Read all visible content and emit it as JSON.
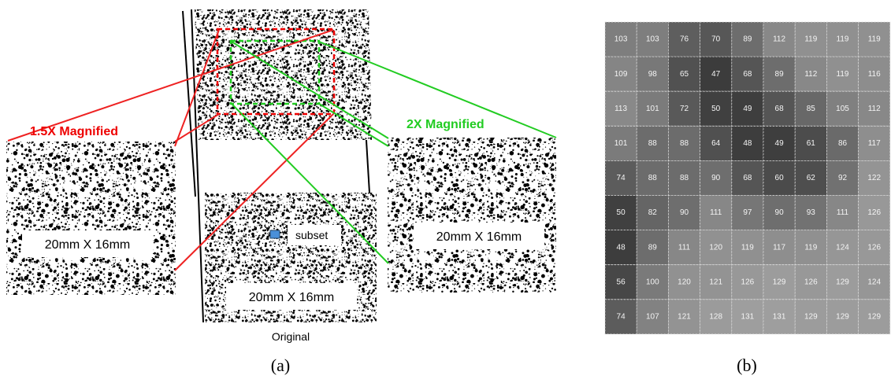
{
  "panel_a": {
    "left_label": "1.5X Magnified",
    "left_size": "20mm X 16mm",
    "right_label": "2X Magnified",
    "right_size": "20mm X 16mm",
    "center_size": "20mm X 16mm",
    "subset_label": "subset",
    "original_label": "Original",
    "caption": "(a)"
  },
  "panel_b": {
    "table": {
      "rows": [
        [
          103,
          103,
          76,
          70,
          89,
          112,
          119,
          119,
          119
        ],
        [
          109,
          98,
          65,
          47,
          68,
          89,
          112,
          119,
          116
        ],
        [
          113,
          101,
          72,
          50,
          49,
          68,
          85,
          105,
          112
        ],
        [
          101,
          88,
          88,
          64,
          48,
          49,
          61,
          86,
          117
        ],
        [
          74,
          88,
          88,
          90,
          68,
          60,
          62,
          92,
          122
        ],
        [
          50,
          82,
          90,
          111,
          97,
          90,
          93,
          111,
          126
        ],
        [
          48,
          89,
          111,
          120,
          119,
          117,
          119,
          124,
          126
        ],
        [
          56,
          100,
          120,
          121,
          126,
          129,
          126,
          129,
          124
        ],
        [
          74,
          107,
          121,
          128,
          131,
          131,
          129,
          129,
          129
        ]
      ]
    },
    "caption": "(b)"
  }
}
